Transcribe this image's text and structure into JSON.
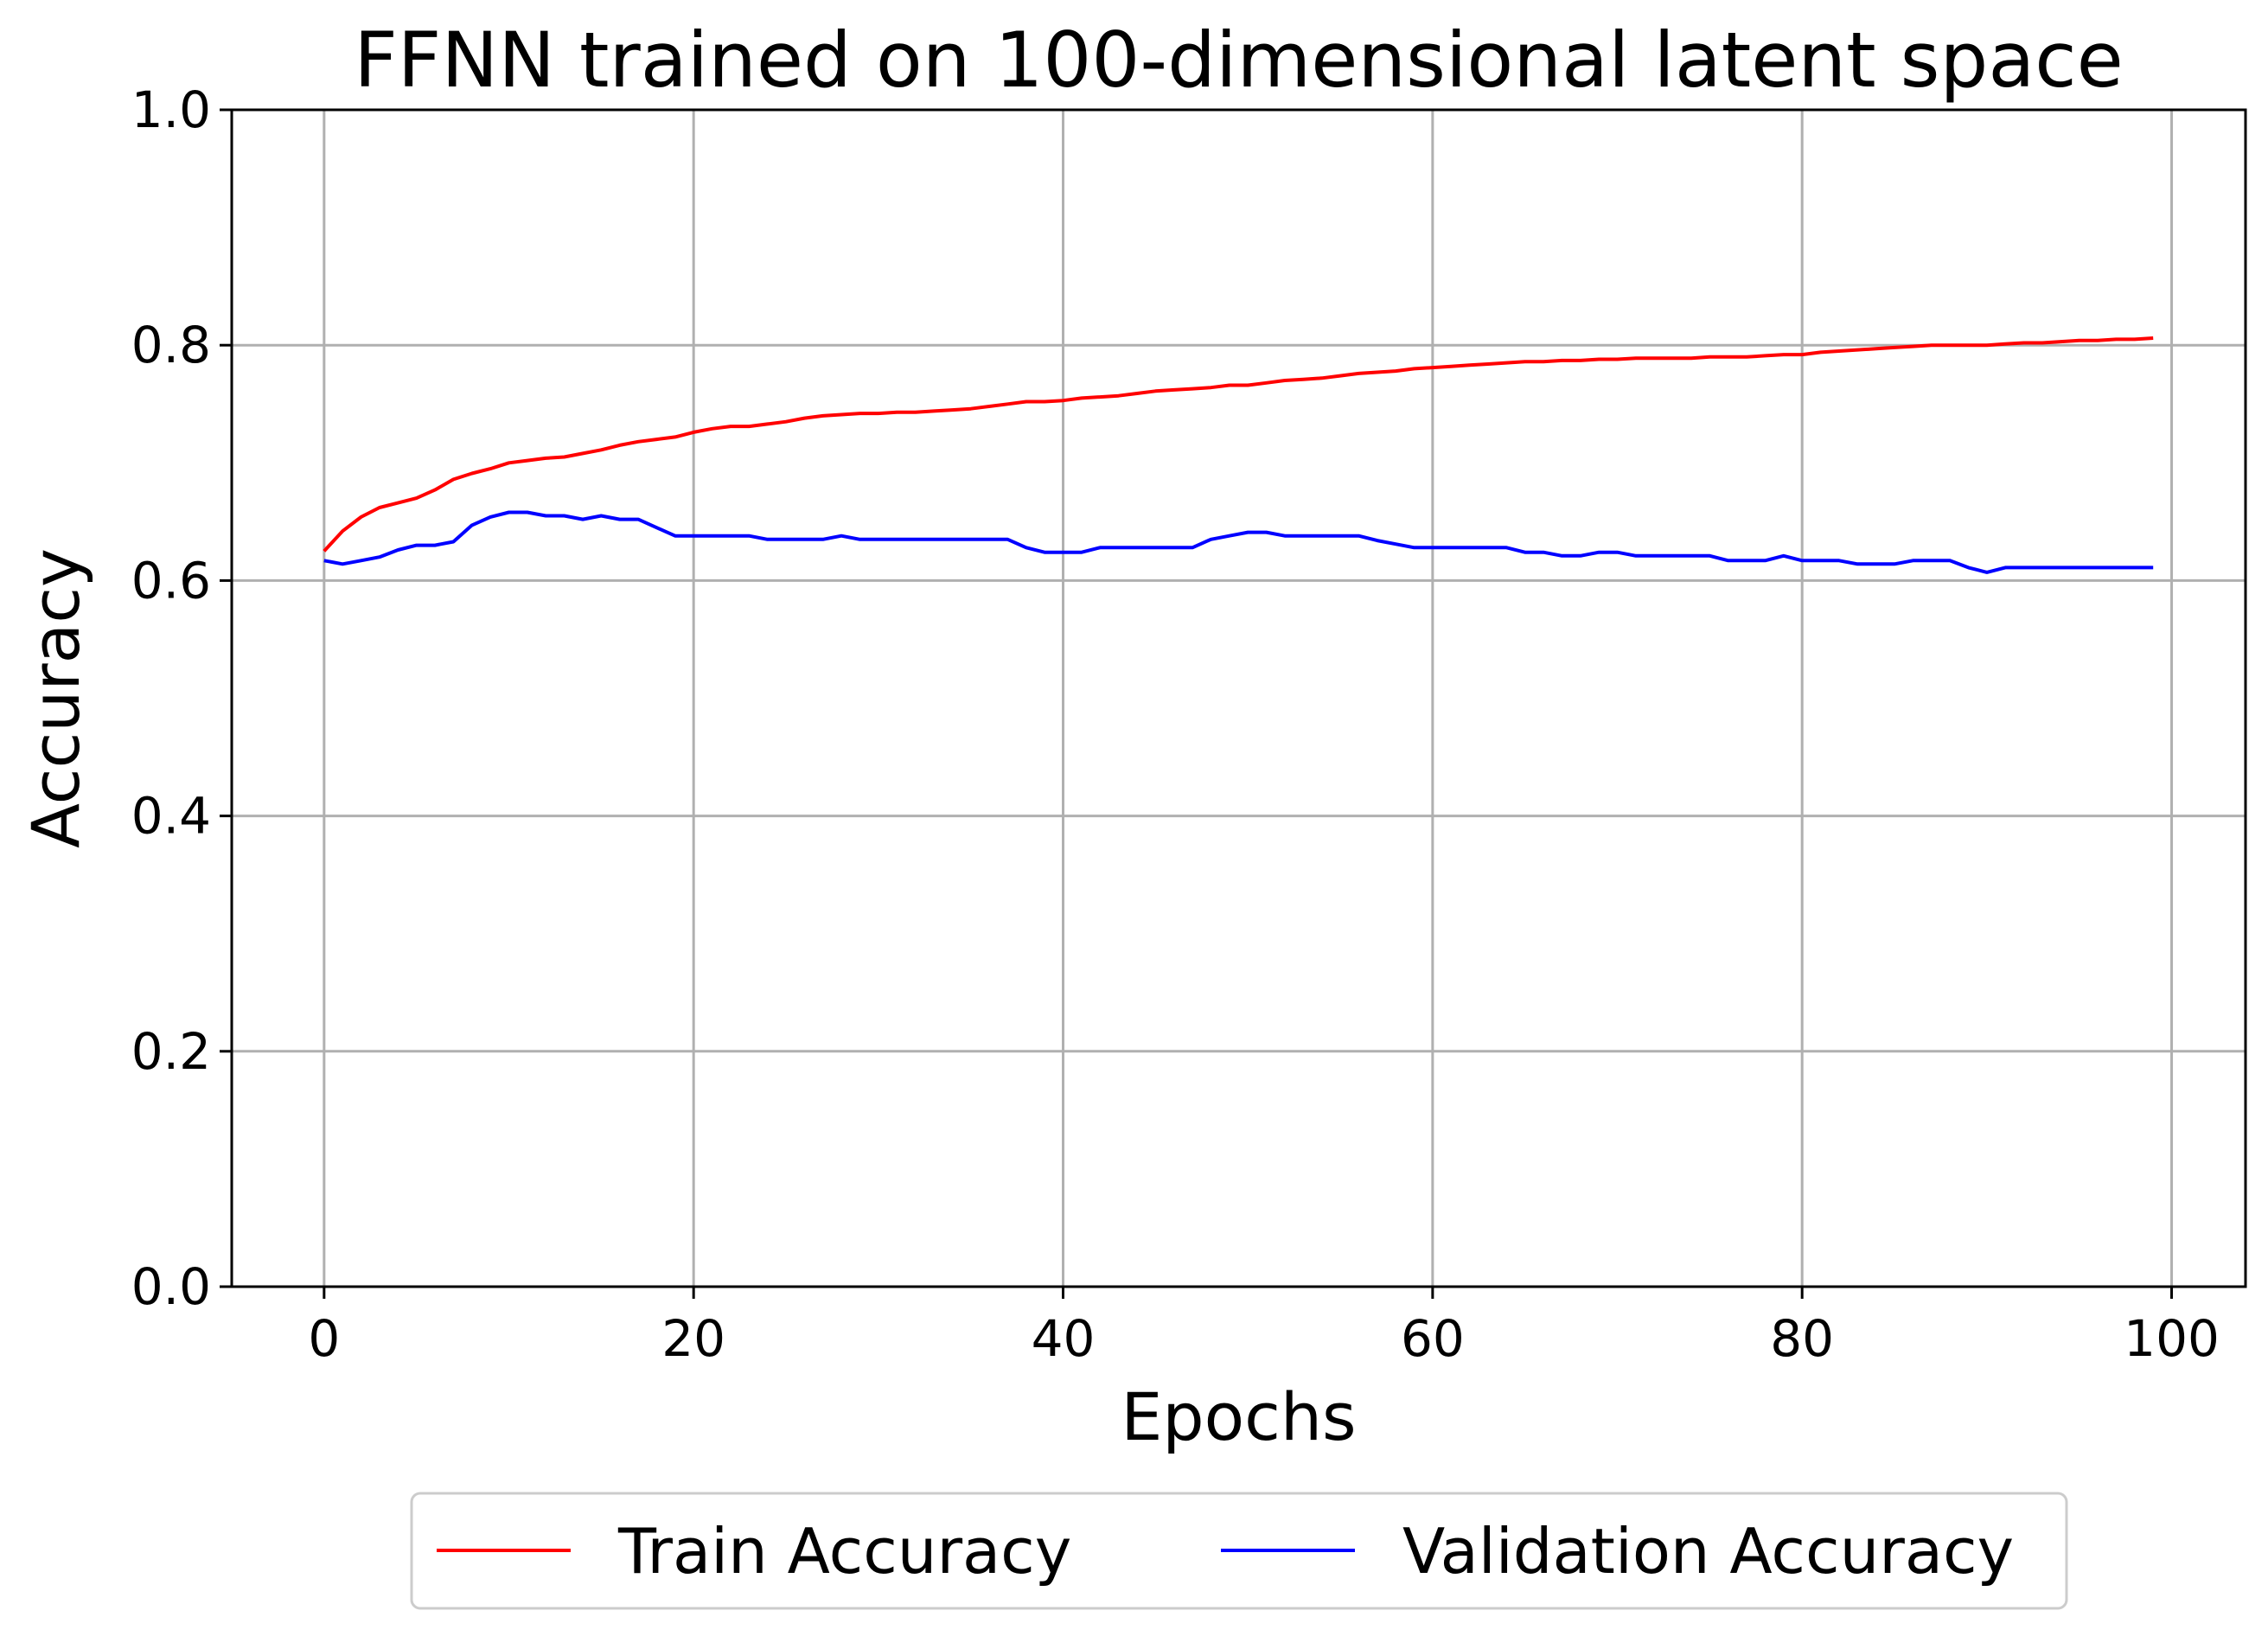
{
  "chart_data": {
    "type": "line",
    "title": "FFNN trained on 100-dimensional latent space",
    "xlabel": "Epochs",
    "ylabel": "Accuracy",
    "xlim": [
      -5,
      104
    ],
    "ylim": [
      0,
      1
    ],
    "xticks": [
      0,
      20,
      40,
      60,
      80,
      100
    ],
    "xtick_labels": [
      "0",
      "20",
      "40",
      "60",
      "80",
      "100"
    ],
    "yticks": [
      0,
      0.2,
      0.4,
      0.6,
      0.8,
      1.0
    ],
    "ytick_labels": [
      "0.0",
      "0.2",
      "0.4",
      "0.6",
      "0.8",
      "1.0"
    ],
    "grid": true,
    "legend_position": "bottom-center",
    "x": [
      0,
      1,
      2,
      3,
      4,
      5,
      6,
      7,
      8,
      9,
      10,
      11,
      12,
      13,
      14,
      15,
      16,
      17,
      18,
      19,
      20,
      21,
      22,
      23,
      24,
      25,
      26,
      27,
      28,
      29,
      30,
      31,
      32,
      33,
      34,
      35,
      36,
      37,
      38,
      39,
      40,
      41,
      42,
      43,
      44,
      45,
      46,
      47,
      48,
      49,
      50,
      51,
      52,
      53,
      54,
      55,
      56,
      57,
      58,
      59,
      60,
      61,
      62,
      63,
      64,
      65,
      66,
      67,
      68,
      69,
      70,
      71,
      72,
      73,
      74,
      75,
      76,
      77,
      78,
      79,
      80,
      81,
      82,
      83,
      84,
      85,
      86,
      87,
      88,
      89,
      90,
      91,
      92,
      93,
      94,
      95,
      96,
      97,
      98,
      99
    ],
    "series": [
      {
        "name": "Train Accuracy",
        "color": "#ff0000",
        "values": [
          0.625,
          0.642,
          0.654,
          0.662,
          0.666,
          0.67,
          0.677,
          0.686,
          0.691,
          0.695,
          0.7,
          0.702,
          0.704,
          0.705,
          0.708,
          0.711,
          0.715,
          0.718,
          0.72,
          0.722,
          0.726,
          0.729,
          0.731,
          0.731,
          0.733,
          0.735,
          0.738,
          0.74,
          0.741,
          0.742,
          0.742,
          0.743,
          0.743,
          0.744,
          0.745,
          0.746,
          0.748,
          0.75,
          0.752,
          0.752,
          0.753,
          0.755,
          0.756,
          0.757,
          0.759,
          0.761,
          0.762,
          0.763,
          0.764,
          0.766,
          0.766,
          0.768,
          0.77,
          0.771,
          0.772,
          0.774,
          0.776,
          0.777,
          0.778,
          0.78,
          0.781,
          0.782,
          0.783,
          0.784,
          0.785,
          0.786,
          0.786,
          0.787,
          0.787,
          0.788,
          0.788,
          0.789,
          0.789,
          0.789,
          0.789,
          0.79,
          0.79,
          0.79,
          0.791,
          0.792,
          0.792,
          0.794,
          0.795,
          0.796,
          0.797,
          0.798,
          0.799,
          0.8,
          0.8,
          0.8,
          0.8,
          0.801,
          0.802,
          0.802,
          0.803,
          0.804,
          0.804,
          0.805,
          0.805,
          0.806
        ]
      },
      {
        "name": "Validation Accuracy",
        "color": "#0000ff",
        "values": [
          0.617,
          0.614,
          0.617,
          0.62,
          0.626,
          0.63,
          0.63,
          0.633,
          0.647,
          0.654,
          0.658,
          0.658,
          0.655,
          0.655,
          0.652,
          0.655,
          0.652,
          0.652,
          0.645,
          0.638,
          0.638,
          0.638,
          0.638,
          0.638,
          0.635,
          0.635,
          0.635,
          0.635,
          0.638,
          0.635,
          0.635,
          0.635,
          0.635,
          0.635,
          0.635,
          0.635,
          0.635,
          0.635,
          0.628,
          0.624,
          0.624,
          0.624,
          0.628,
          0.628,
          0.628,
          0.628,
          0.628,
          0.628,
          0.635,
          0.638,
          0.641,
          0.641,
          0.638,
          0.638,
          0.638,
          0.638,
          0.638,
          0.634,
          0.631,
          0.628,
          0.628,
          0.628,
          0.628,
          0.628,
          0.628,
          0.624,
          0.624,
          0.621,
          0.621,
          0.624,
          0.624,
          0.621,
          0.621,
          0.621,
          0.621,
          0.621,
          0.617,
          0.617,
          0.617,
          0.621,
          0.617,
          0.617,
          0.617,
          0.614,
          0.614,
          0.614,
          0.617,
          0.617,
          0.617,
          0.611,
          0.607,
          0.611,
          0.611,
          0.611,
          0.611,
          0.611,
          0.611,
          0.611,
          0.611,
          0.611
        ]
      }
    ]
  }
}
